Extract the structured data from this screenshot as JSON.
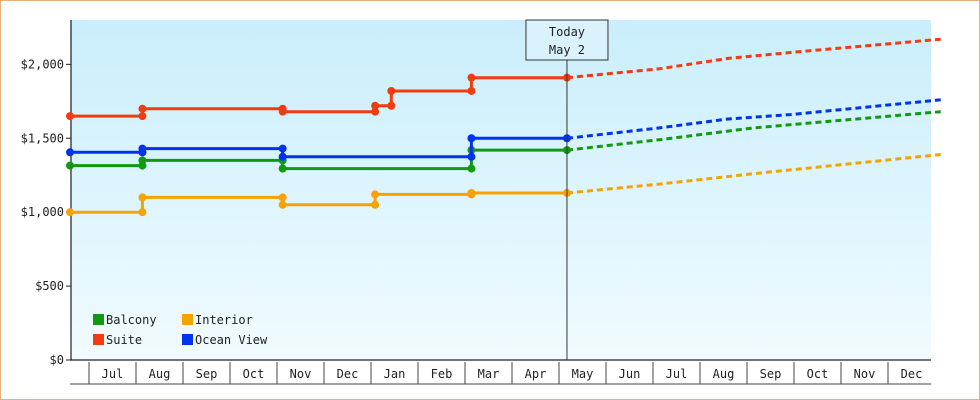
{
  "chart_data": {
    "type": "line",
    "title": "",
    "xlabel": "",
    "ylabel": "",
    "ylim": [
      0,
      2300
    ],
    "y_ticks": [
      {
        "value": 0,
        "label": "$0"
      },
      {
        "value": 500,
        "label": "$500"
      },
      {
        "value": 1000,
        "label": "$1,000"
      },
      {
        "value": 1500,
        "label": "$1,500"
      },
      {
        "value": 2000,
        "label": "$2,000"
      }
    ],
    "x_start": "Jun 15",
    "x_end": "Dec 31",
    "x_ticks": [
      "Jul",
      "Aug",
      "Sep",
      "Oct",
      "Nov",
      "Dec",
      "Jan",
      "Feb",
      "Mar",
      "Apr",
      "May",
      "Jun",
      "Jul",
      "Aug",
      "Sep",
      "Oct",
      "Nov",
      "Dec"
    ],
    "today": {
      "line1": "Today",
      "line2": "May 2"
    },
    "legend_position": "bottom-left",
    "series": [
      {
        "name": "Balcony",
        "color": "#119911",
        "history": [
          [
            "Jun 15",
            1315
          ],
          [
            "Aug 1",
            1315
          ],
          [
            "Aug 1",
            1350
          ],
          [
            "Oct 31",
            1350
          ],
          [
            "Oct 31",
            1295
          ],
          [
            "Mar 1",
            1295
          ],
          [
            "Mar 1",
            1420
          ],
          [
            "May 2",
            1420
          ]
        ],
        "forecast": [
          [
            "May 2",
            1420
          ],
          [
            "Jul 1",
            1490
          ],
          [
            "Sep 1",
            1570
          ],
          [
            "Dec 31",
            1680
          ]
        ]
      },
      {
        "name": "Interior",
        "color": "#f5a300",
        "history": [
          [
            "Jun 15",
            1000
          ],
          [
            "Aug 1",
            1000
          ],
          [
            "Aug 1",
            1100
          ],
          [
            "Oct 31",
            1100
          ],
          [
            "Oct 31",
            1050
          ],
          [
            "Dec 30",
            1050
          ],
          [
            "Dec 30",
            1120
          ],
          [
            "Mar 1",
            1120
          ],
          [
            "Mar 1",
            1130
          ],
          [
            "May 2",
            1130
          ]
        ],
        "forecast": [
          [
            "May 2",
            1130
          ],
          [
            "Jul 1",
            1190
          ],
          [
            "Sep 1",
            1260
          ],
          [
            "Dec 31",
            1390
          ]
        ]
      },
      {
        "name": "Suite",
        "color": "#f23b0f",
        "history": [
          [
            "Jun 15",
            1650
          ],
          [
            "Aug 1",
            1650
          ],
          [
            "Aug 1",
            1700
          ],
          [
            "Oct 31",
            1700
          ],
          [
            "Oct 31",
            1680
          ],
          [
            "Dec 30",
            1680
          ],
          [
            "Dec 30",
            1720
          ],
          [
            "Jan 10",
            1720
          ],
          [
            "Jan 10",
            1820
          ],
          [
            "Mar 1",
            1820
          ],
          [
            "Mar 1",
            1910
          ],
          [
            "May 2",
            1910
          ]
        ],
        "forecast": [
          [
            "May 2",
            1910
          ],
          [
            "Jul 1",
            1970
          ],
          [
            "Aug 15",
            2040
          ],
          [
            "Sep 25",
            2080
          ],
          [
            "Dec 31",
            2170
          ]
        ]
      },
      {
        "name": "Ocean View",
        "color": "#0033ee",
        "history": [
          [
            "Jun 15",
            1405
          ],
          [
            "Aug 1",
            1405
          ],
          [
            "Aug 1",
            1430
          ],
          [
            "Oct 31",
            1430
          ],
          [
            "Oct 31",
            1375
          ],
          [
            "Mar 1",
            1375
          ],
          [
            "Mar 1",
            1500
          ],
          [
            "May 2",
            1500
          ]
        ],
        "forecast": [
          [
            "May 2",
            1500
          ],
          [
            "Jul 1",
            1570
          ],
          [
            "Aug 15",
            1630
          ],
          [
            "Sep 25",
            1660
          ],
          [
            "Dec 31",
            1760
          ]
        ]
      }
    ]
  }
}
